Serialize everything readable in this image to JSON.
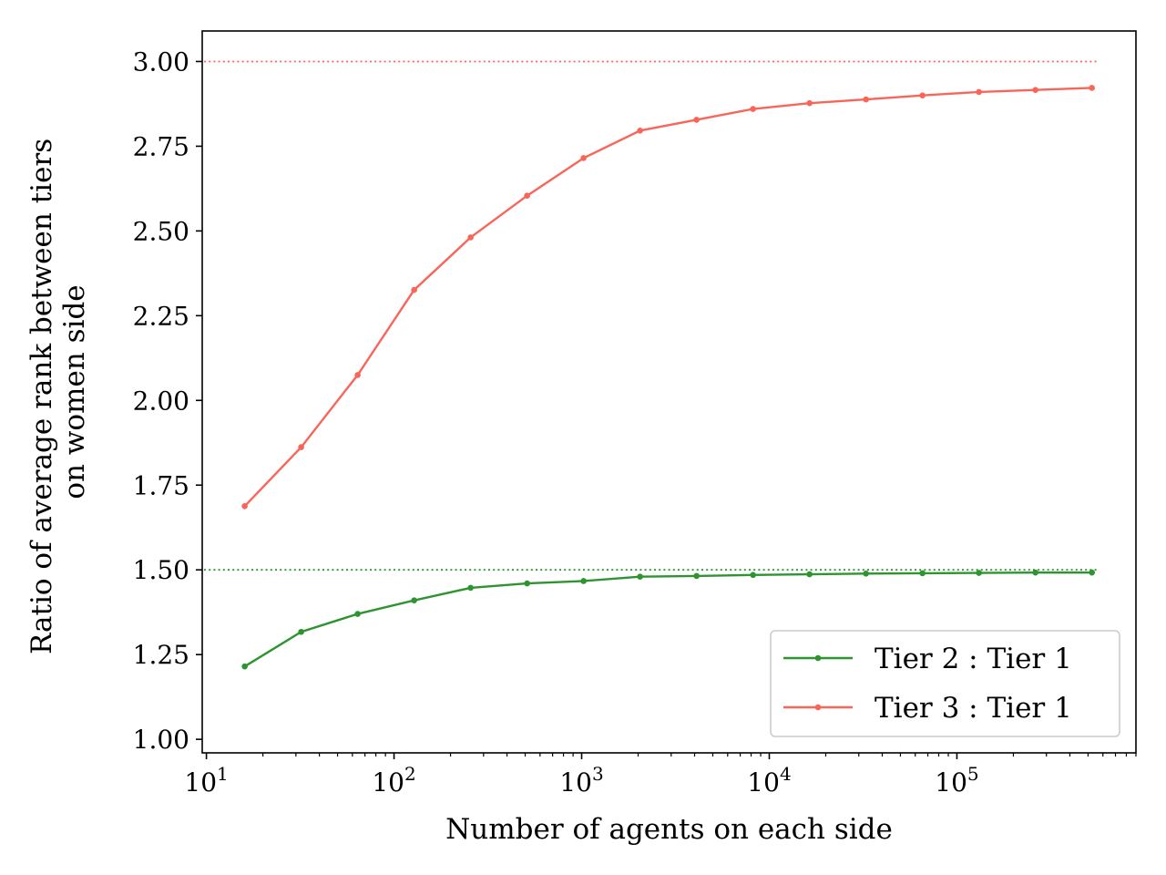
{
  "chart_data": {
    "type": "line",
    "title": "",
    "xlabel": "Number of agents on each side",
    "ylabel_lines": [
      "Ratio of average rank between tiers",
      "on women side"
    ],
    "x_scale": "log",
    "xlim": [
      9.5,
      900000
    ],
    "ylim": [
      0.96,
      3.09
    ],
    "x_ticks": [
      {
        "value": 10,
        "base": "10",
        "exp": "1"
      },
      {
        "value": 100,
        "base": "10",
        "exp": "2"
      },
      {
        "value": 1000,
        "base": "10",
        "exp": "3"
      },
      {
        "value": 10000,
        "base": "10",
        "exp": "4"
      },
      {
        "value": 100000,
        "base": "10",
        "exp": "5"
      }
    ],
    "y_ticks": [
      {
        "value": 1.0,
        "label": "1.00"
      },
      {
        "value": 1.25,
        "label": "1.25"
      },
      {
        "value": 1.5,
        "label": "1.50"
      },
      {
        "value": 1.75,
        "label": "1.75"
      },
      {
        "value": 2.0,
        "label": "2.00"
      },
      {
        "value": 2.25,
        "label": "2.25"
      },
      {
        "value": 2.5,
        "label": "2.50"
      },
      {
        "value": 2.75,
        "label": "2.75"
      },
      {
        "value": 3.0,
        "label": "3.00"
      }
    ],
    "x": [
      16,
      32,
      64,
      128,
      256,
      512,
      1024,
      2048,
      4096,
      8192,
      16384,
      32768,
      65536,
      131072,
      262144,
      524288
    ],
    "series": [
      {
        "name": "Tier 2 : Tier 1",
        "color": "#2e9430",
        "values": [
          1.215,
          1.317,
          1.37,
          1.41,
          1.447,
          1.46,
          1.467,
          1.48,
          1.482,
          1.485,
          1.487,
          1.489,
          1.49,
          1.491,
          1.492,
          1.492
        ]
      },
      {
        "name": "Tier 3 : Tier 1",
        "color": "#f8665a",
        "values": [
          1.688,
          1.862,
          2.075,
          2.326,
          2.481,
          2.604,
          2.715,
          2.796,
          2.828,
          2.86,
          2.877,
          2.888,
          2.9,
          2.91,
          2.916,
          2.922
        ]
      }
    ],
    "reference_lines": [
      {
        "y": 3.0,
        "color": "#f8665a",
        "style": "dotted"
      },
      {
        "y": 1.5,
        "color": "#2e9430",
        "style": "dotted"
      }
    ],
    "grid": false,
    "legend_position": "lower-right"
  }
}
